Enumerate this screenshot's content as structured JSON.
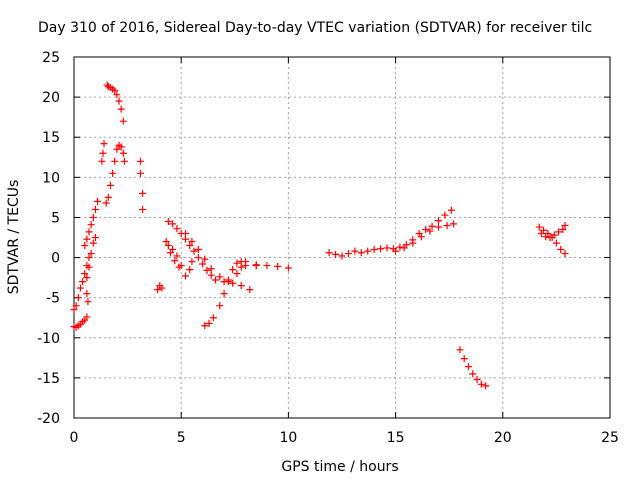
{
  "chart_data": {
    "type": "scatter",
    "title": "Day 310 of 2016, Sidereal Day-to-day VTEC variation (SDTVAR) for receiver tilc",
    "xlabel": "GPS time / hours",
    "ylabel": "SDTVAR / TECUs",
    "xlim": [
      0,
      25
    ],
    "ylim": [
      -20,
      25
    ],
    "x_ticks": [
      "0",
      "5",
      "10",
      "15",
      "20",
      "25"
    ],
    "y_ticks": [
      "25",
      "20",
      "15",
      "10",
      "5",
      "0",
      "-5",
      "-10",
      "-15",
      "-20"
    ],
    "grid": true,
    "marker": "+",
    "color": "#ff0000",
    "series": [
      {
        "x": [
          0.0,
          0.1,
          0.2,
          0.3,
          0.4,
          0.5,
          0.6
        ],
        "y": [
          -8.6,
          -8.7,
          -8.5,
          -8.3,
          -8.0,
          -7.8,
          -7.4
        ]
      },
      {
        "x": [
          0.0,
          0.1,
          0.2,
          0.3,
          0.4,
          0.5,
          0.6,
          0.7
        ],
        "y": [
          -6.5,
          -6.0,
          -5.0,
          -3.8,
          -3.0,
          -2.0,
          -1.0,
          0.0
        ]
      },
      {
        "x": [
          0.5,
          0.6,
          0.7,
          0.8,
          0.9,
          1.0,
          1.1
        ],
        "y": [
          1.5,
          2.3,
          3.2,
          4.1,
          5.0,
          6.0,
          7.0
        ]
      },
      {
        "x": [
          0.6,
          0.7,
          0.8,
          0.9,
          1.0
        ],
        "y": [
          -2.5,
          -1.2,
          0.5,
          1.8,
          2.5
        ]
      },
      {
        "x": [
          0.6,
          0.65
        ],
        "y": [
          -4.5,
          -5.5
        ]
      },
      {
        "x": [
          1.3,
          1.35,
          1.4
        ],
        "y": [
          12.0,
          13.0,
          14.2
        ]
      },
      {
        "x": [
          1.55,
          1.6,
          1.7,
          1.8,
          1.9,
          2.0,
          2.1,
          2.2,
          2.3
        ],
        "y": [
          21.5,
          21.3,
          21.2,
          21.0,
          20.8,
          20.3,
          19.5,
          18.5,
          17.0
        ]
      },
      {
        "x": [
          1.5,
          1.6,
          1.7,
          1.8,
          1.9,
          2.0,
          2.1,
          2.2,
          2.3,
          2.35
        ],
        "y": [
          6.8,
          7.5,
          9.0,
          10.5,
          12.0,
          13.5,
          14.0,
          13.8,
          13.0,
          12.0
        ]
      },
      {
        "x": [
          3.1,
          3.1,
          3.2,
          3.2
        ],
        "y": [
          12.0,
          10.5,
          8.0,
          6.0
        ]
      },
      {
        "x": [
          3.9,
          4.0,
          4.1
        ],
        "y": [
          -4.0,
          -3.5,
          -3.8
        ]
      },
      {
        "x": [
          4.4,
          4.6,
          4.8,
          5.0,
          5.2,
          5.4,
          5.6,
          5.8,
          6.0,
          6.2,
          6.4,
          6.6,
          7.0,
          7.4,
          7.8,
          8.2
        ],
        "y": [
          4.5,
          4.2,
          3.6,
          3.0,
          2.3,
          1.5,
          0.8,
          0.0,
          -0.8,
          -1.6,
          -2.2,
          -2.8,
          -3.0,
          -3.2,
          -3.5,
          -4.0
        ]
      },
      {
        "x": [
          4.4,
          4.6,
          4.8,
          5.0,
          5.2,
          5.4,
          5.5
        ],
        "y": [
          1.5,
          1.0,
          0.2,
          -1.0,
          -2.3,
          -1.5,
          -0.5
        ]
      },
      {
        "x": [
          4.3,
          4.5,
          4.7,
          4.9
        ],
        "y": [
          2.0,
          0.6,
          -0.4,
          -1.2
        ]
      },
      {
        "x": [
          5.2,
          5.5,
          5.8,
          6.1,
          6.4,
          6.8,
          7.2,
          7.6,
          7.8,
          8.0,
          8.5,
          9.0,
          9.5,
          10.0
        ],
        "y": [
          3.0,
          2.0,
          1.0,
          -0.2,
          -1.4,
          -2.4,
          -2.8,
          -2.0,
          -1.2,
          -1.0,
          -1.0,
          -1.0,
          -1.1,
          -1.3
        ]
      },
      {
        "x": [
          6.1,
          6.3,
          6.5,
          6.8,
          7.0,
          7.2,
          7.4,
          7.6,
          7.8,
          8.0,
          8.5
        ],
        "y": [
          -8.5,
          -8.2,
          -7.5,
          -6.0,
          -4.5,
          -3.0,
          -1.5,
          -0.7,
          -0.5,
          -0.5,
          -0.9
        ]
      },
      {
        "x": [
          11.9,
          12.2,
          12.5,
          12.8,
          13.1,
          13.4,
          13.7,
          14.0,
          14.3,
          14.6,
          14.9,
          15.2,
          15.5,
          15.8,
          16.1,
          16.4,
          16.7,
          17.0,
          17.3,
          17.6
        ],
        "y": [
          0.6,
          0.4,
          0.2,
          0.5,
          0.8,
          0.6,
          0.8,
          1.0,
          1.1,
          1.2,
          1.1,
          1.3,
          1.6,
          2.2,
          3.0,
          3.5,
          3.9,
          4.6,
          5.3,
          5.9
        ]
      },
      {
        "x": [
          15.0,
          15.4,
          15.8,
          16.2,
          16.6,
          17.0,
          17.4,
          17.7
        ],
        "y": [
          0.8,
          1.2,
          1.8,
          2.6,
          3.3,
          3.8,
          4.0,
          4.2
        ]
      },
      {
        "x": [
          18.0,
          18.2,
          18.4,
          18.6,
          18.8,
          19.0,
          19.2
        ],
        "y": [
          -11.5,
          -12.6,
          -13.6,
          -14.5,
          -15.2,
          -15.8,
          -16.0
        ]
      },
      {
        "x": [
          21.7,
          21.9,
          22.1,
          22.3,
          22.5,
          22.7,
          22.9
        ],
        "y": [
          3.8,
          3.4,
          3.0,
          2.5,
          1.8,
          1.0,
          0.5
        ]
      },
      {
        "x": [
          21.8,
          22.0,
          22.2,
          22.4,
          22.6,
          22.8,
          22.9
        ],
        "y": [
          3.0,
          2.6,
          2.5,
          2.8,
          3.2,
          3.5,
          4.0
        ]
      }
    ]
  }
}
